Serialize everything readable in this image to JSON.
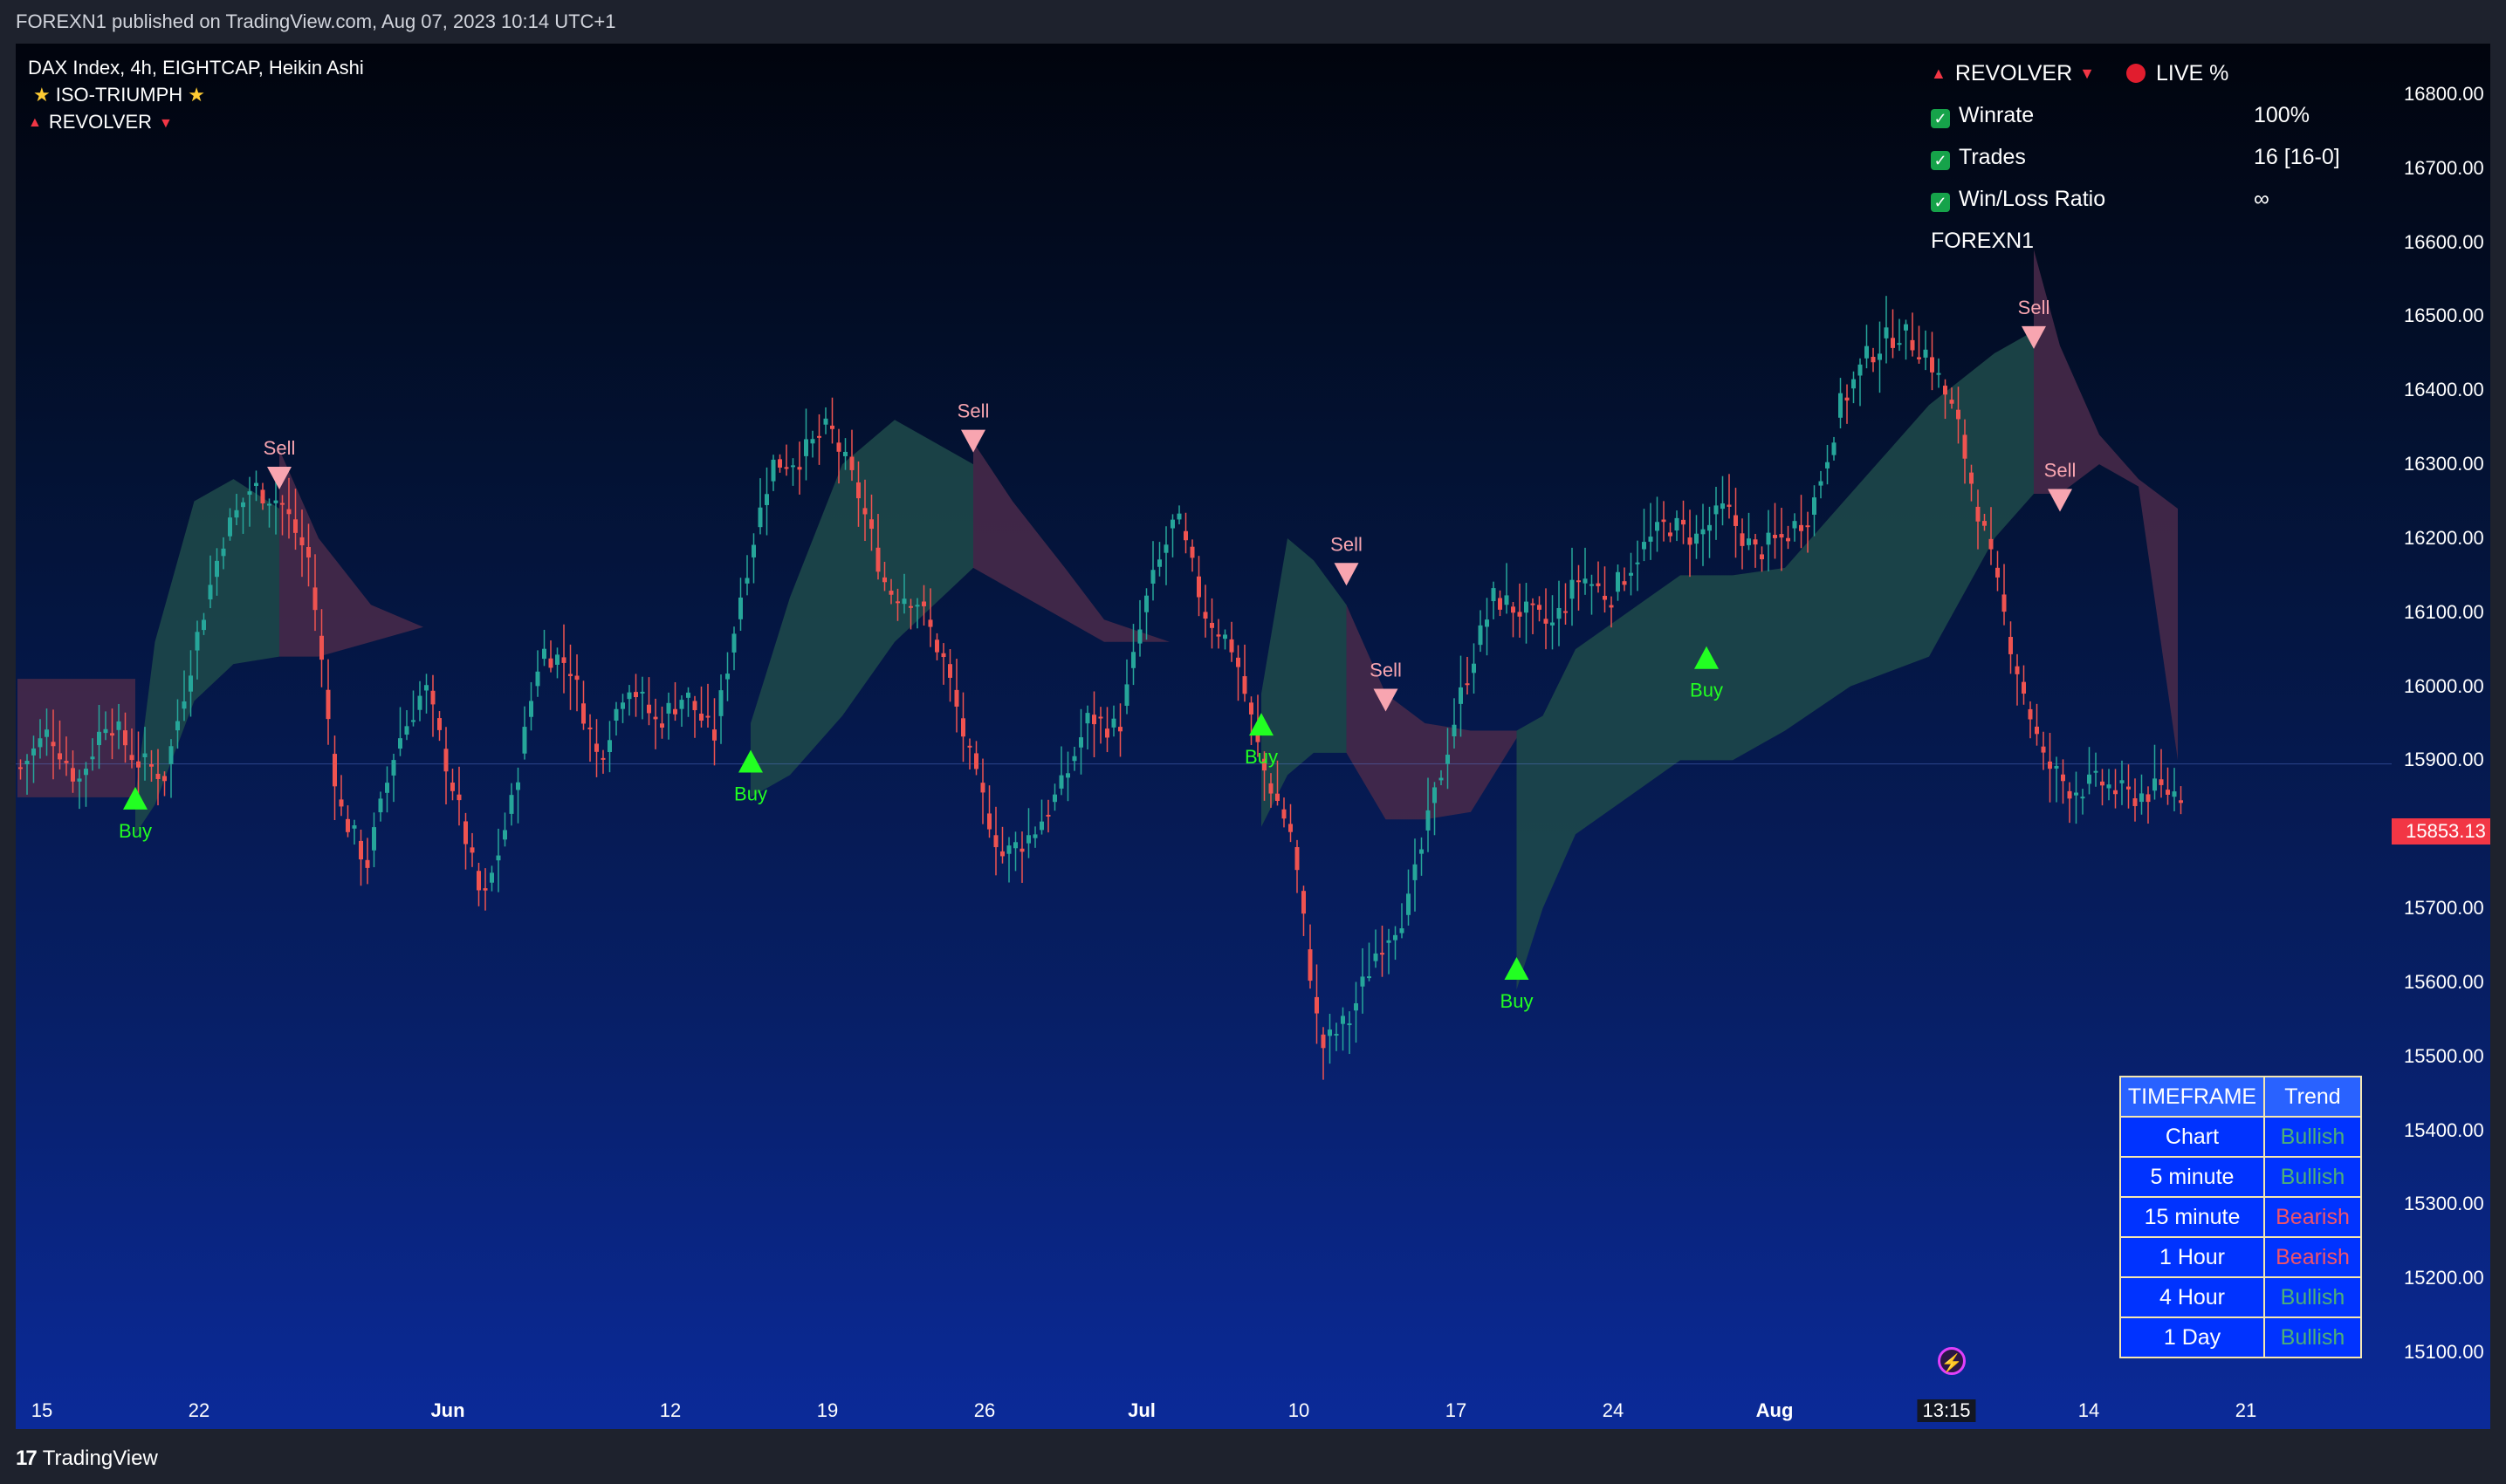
{
  "header": {
    "published": "FOREXN1 published on TradingView.com, Aug 07, 2023 10:14 UTC+1"
  },
  "legend": {
    "symbol": "DAX Index, 4h, EIGHTCAP, Heikin Ashi",
    "indicator1": "ISO-TRIUMPH",
    "indicator2": "REVOLVER"
  },
  "stats": {
    "title": "REVOLVER",
    "live": "LIVE %",
    "rows": [
      {
        "label": "Winrate",
        "value": "100%"
      },
      {
        "label": "Trades",
        "value": "16 [16-0]"
      },
      {
        "label": "Win/Loss Ratio",
        "value": "∞"
      }
    ],
    "author": "FOREXN1"
  },
  "trend_table": {
    "headers": [
      "TIMEFRAME",
      "Trend"
    ],
    "rows": [
      {
        "tf": "Chart",
        "trend": "Bullish"
      },
      {
        "tf": "5 minute",
        "trend": "Bullish"
      },
      {
        "tf": "15 minute",
        "trend": "Bearish"
      },
      {
        "tf": "1 Hour",
        "trend": "Bearish"
      },
      {
        "tf": "4 Hour",
        "trend": "Bullish"
      },
      {
        "tf": "1 Day",
        "trend": "Bullish"
      }
    ]
  },
  "price_axis": [
    "16800.00",
    "16700.00",
    "16600.00",
    "16500.00",
    "16400.00",
    "16300.00",
    "16200.00",
    "16100.00",
    "16000.00",
    "15900.00",
    "15800.00",
    "15700.00",
    "15600.00",
    "15500.00",
    "15400.00",
    "15300.00",
    "15200.00",
    "15100.00"
  ],
  "current_price": "15853.13",
  "time_axis": [
    "15",
    "22",
    "Jun",
    "12",
    "19",
    "26",
    "Jul",
    "10",
    "17",
    "24",
    "Aug",
    "13:15",
    "14",
    "21"
  ],
  "footer": {
    "brand": "TradingView"
  },
  "colors": {
    "bull": "#26a69a",
    "bear": "#ef5350",
    "buy_signal": "#22ff22",
    "sell_signal": "#f8a5b0",
    "bull_cloud": "#1f4a4a",
    "bear_cloud": "#4a2a4a",
    "price_line": "#f23645"
  },
  "chart_data": {
    "type": "candlestick",
    "price_range": [
      15040,
      16870
    ],
    "path_times": [
      0,
      3,
      6,
      9,
      12,
      15,
      18,
      21,
      24,
      27,
      30,
      33,
      36,
      39,
      42,
      45,
      48,
      51,
      54,
      57,
      60,
      63,
      66,
      69,
      72,
      75,
      78,
      81,
      84,
      87,
      90,
      93,
      96,
      99,
      102,
      105,
      108,
      111,
      114,
      117,
      120,
      123,
      126,
      129,
      132,
      135,
      138,
      141,
      144,
      147,
      150,
      153,
      156,
      159,
      162,
      165,
      168,
      171,
      174,
      177,
      180,
      183,
      186,
      189,
      192,
      195,
      198,
      201,
      204,
      207,
      210,
      213,
      216,
      219,
      222,
      225
    ],
    "path_prices": [
      15890,
      15940,
      15870,
      15960,
      15900,
      15880,
      16050,
      16200,
      16270,
      16250,
      16170,
      15840,
      15760,
      15920,
      16000,
      15860,
      15700,
      15840,
      16050,
      16030,
      15900,
      16010,
      15950,
      15990,
      15930,
      16140,
      16300,
      16310,
      16350,
      16260,
      16130,
      16120,
      16030,
      15880,
      15770,
      15800,
      15860,
      15960,
      15940,
      16120,
      16230,
      16100,
      16050,
      15890,
      15800,
      15510,
      15550,
      15650,
      15700,
      15860,
      16010,
      16120,
      16100,
      16080,
      16150,
      16120,
      16180,
      16220,
      16200,
      16240,
      16180,
      16200,
      16240,
      16380,
      16450,
      16480,
      16450,
      16360,
      16200,
      16040,
      15900,
      15860,
      15870,
      15850,
      15860,
      15853
    ],
    "signals": [
      {
        "type": "Buy",
        "time": 18,
        "price": 15890
      },
      {
        "type": "Sell",
        "time": 40,
        "price": 16240
      },
      {
        "type": "Buy",
        "time": 112,
        "price": 15940
      },
      {
        "type": "Sell",
        "time": 146,
        "price": 16290
      },
      {
        "type": "Buy",
        "time": 190,
        "price": 15990
      },
      {
        "type": "Sell",
        "time": 203,
        "price": 16110
      },
      {
        "type": "Sell",
        "time": 209,
        "price": 15940
      },
      {
        "type": "Buy",
        "time": 229,
        "price": 15660
      },
      {
        "type": "Buy",
        "time": 258,
        "price": 16080
      },
      {
        "type": "Sell",
        "time": 308,
        "price": 16430
      },
      {
        "type": "Sell",
        "time": 312,
        "price": 16210
      }
    ],
    "clouds": [
      {
        "kind": "bear",
        "times": [
          0,
          18
        ],
        "top": [
          16010,
          16010
        ],
        "bottom": [
          15850,
          15850
        ]
      },
      {
        "kind": "bull",
        "times": [
          18,
          21,
          27,
          33,
          40
        ],
        "top": [
          15850,
          16060,
          16250,
          16280,
          16240
        ],
        "bottom": [
          15800,
          15840,
          15980,
          16030,
          16040
        ]
      },
      {
        "kind": "bear",
        "times": [
          40,
          46,
          54,
          62,
          72,
          86,
          112
        ],
        "top": [
          16320,
          16200,
          16110,
          16080,
          16080,
          16080,
          16080
        ],
        "bottom": [
          16040,
          16040,
          16060,
          16080,
          16080,
          16080,
          16080
        ]
      },
      {
        "kind": "bull",
        "times": [
          112,
          118,
          126,
          134,
          146
        ],
        "top": [
          15950,
          16120,
          16300,
          16360,
          16300
        ],
        "bottom": [
          15850,
          15880,
          15960,
          16060,
          16160
        ]
      },
      {
        "kind": "bear",
        "times": [
          146,
          152,
          160,
          166,
          176,
          190
        ],
        "top": [
          16330,
          16250,
          16160,
          16090,
          16060,
          16060
        ],
        "bottom": [
          16160,
          16130,
          16090,
          16060,
          16060,
          16060
        ]
      },
      {
        "kind": "bull",
        "times": [
          190,
          194,
          198,
          203
        ],
        "top": [
          15990,
          16200,
          16170,
          16110
        ],
        "bottom": [
          15810,
          15880,
          15910,
          15910
        ]
      },
      {
        "kind": "bear",
        "times": [
          203,
          209,
          215,
          222,
          229
        ],
        "top": [
          16110,
          15990,
          15950,
          15940,
          15940
        ],
        "bottom": [
          15910,
          15820,
          15820,
          15830,
          15930
        ]
      },
      {
        "kind": "bull",
        "times": [
          229,
          233,
          238,
          246,
          254,
          262,
          270,
          280,
          292,
          302,
          308
        ],
        "top": [
          15940,
          15960,
          16050,
          16100,
          16150,
          16150,
          16160,
          16260,
          16380,
          16450,
          16480
        ],
        "bottom": [
          15590,
          15700,
          15800,
          15850,
          15900,
          15900,
          15940,
          16000,
          16040,
          16200,
          16260
        ]
      },
      {
        "kind": "bear",
        "times": [
          308,
          312,
          318,
          324,
          330
        ],
        "top": [
          16590,
          16460,
          16340,
          16280,
          16240
        ],
        "bottom": [
          16260,
          16260,
          16300,
          16270,
          15900
        ]
      }
    ]
  }
}
